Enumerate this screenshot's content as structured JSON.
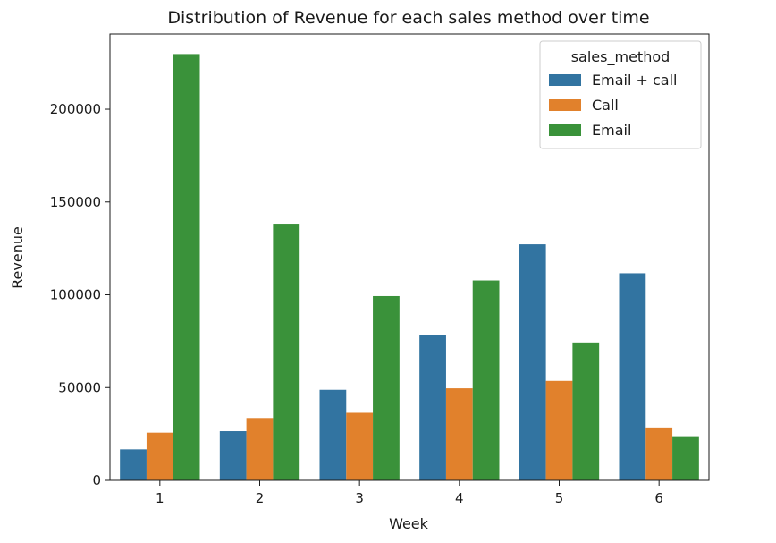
{
  "chart_data": {
    "type": "bar",
    "title": "Distribution of Revenue for each sales method over time",
    "xlabel": "Week",
    "ylabel": "Revenue",
    "categories": [
      "1",
      "2",
      "3",
      "4",
      "5",
      "6"
    ],
    "yticks": [
      0,
      50000,
      100000,
      150000,
      200000
    ],
    "ylim": [
      0,
      240500
    ],
    "grid": false,
    "legend": {
      "title": "sales_method",
      "placement": "top-right"
    },
    "series": [
      {
        "name": "Email + call",
        "color": "#3274a1",
        "values": [
          16700,
          26500,
          48800,
          78300,
          127200,
          111600
        ]
      },
      {
        "name": "Call",
        "color": "#e1812c",
        "values": [
          25700,
          33600,
          36400,
          49600,
          53600,
          28500
        ]
      },
      {
        "name": "Email",
        "color": "#3a923a",
        "values": [
          229700,
          138300,
          99300,
          107700,
          74300,
          23800
        ]
      }
    ]
  }
}
